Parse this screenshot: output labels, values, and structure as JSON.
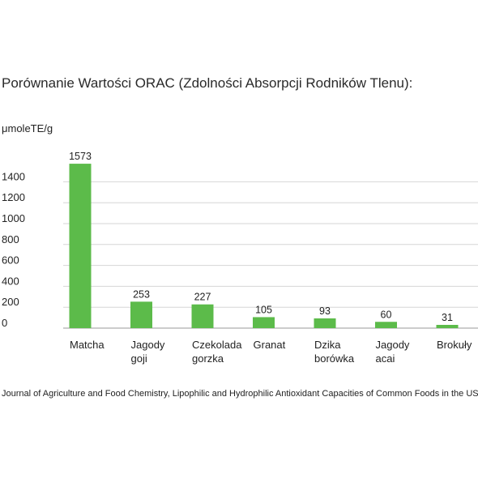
{
  "title": "Porównanie Wartości ORAC (Zdolności Absorpcji Rodników Tlenu):",
  "source": "Journal of Agriculture and Food Chemistry, Lipophilic and Hydrophilic Antioxidant Capacities of Common Foods in the US.",
  "colors": {
    "bar": "#5cbb4a",
    "grid": "#d6d6d6",
    "axis": "#9a9a9a"
  },
  "chart_data": {
    "type": "bar",
    "title": "Porównanie Wartości ORAC (Zdolności Absorpcji Rodników Tlenu):",
    "ylabel": "μmoleTE/g",
    "xlabel": "",
    "ylim": [
      0,
      1400
    ],
    "yticks": [
      0,
      200,
      400,
      600,
      800,
      1000,
      1200,
      1400
    ],
    "grid": true,
    "categories": [
      [
        "Matcha"
      ],
      [
        "Jagody",
        "goji"
      ],
      [
        "Czekolada",
        "gorzka"
      ],
      [
        "Granat"
      ],
      [
        "Dzika",
        "borówka"
      ],
      [
        "Jagody",
        "acai"
      ],
      [
        "Brokuły"
      ]
    ],
    "values": [
      1573,
      253,
      227,
      105,
      93,
      60,
      31
    ],
    "data_labels": [
      "1573",
      "253",
      "227",
      "105",
      "93",
      "60",
      "31"
    ]
  }
}
